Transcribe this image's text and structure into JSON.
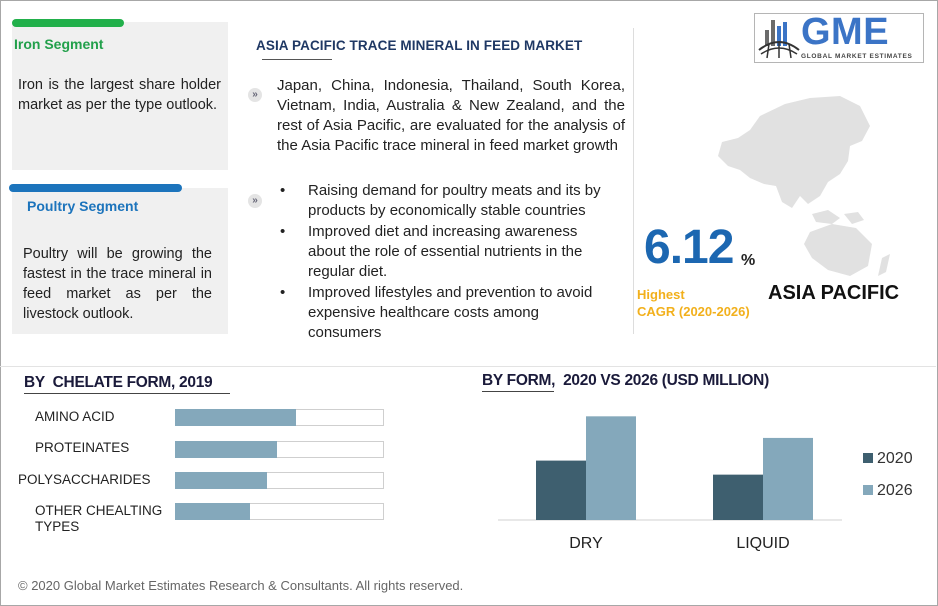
{
  "iron": {
    "title": "Iron Segment",
    "text": "Iron is the largest share holder market as per the type outlook.",
    "accent": "#22b04b"
  },
  "poultry": {
    "title": "Poultry Segment",
    "text": "Poultry will be growing the fastest in the trace mineral in feed market as per the livestock outlook.",
    "accent": "#1c74bc"
  },
  "main": {
    "title": "ASIA PACIFIC TRACE MINERAL IN FEED MARKET",
    "paragraph": "Japan, China, Indonesia, Thailand, South Korea, Vietnam, India, Australia & New Zealand, and the rest of Asia Pacific, are evaluated for the analysis of the Asia Pacific trace mineral in feed market growth",
    "bullets": [
      "Raising demand for poultry meats and its by products by economically stable countries",
      "Improved diet and increasing awareness about the role of essential nutrients in the regular diet.",
      "Improved lifestyles and prevention to avoid expensive healthcare costs among consumers"
    ],
    "bullet_glyph": "•",
    "icon_glyph": "»"
  },
  "logo": {
    "text": "GME",
    "subtitle": "GLOBAL MARKET ESTIMATES"
  },
  "stat": {
    "value": "6.12",
    "unit": "%",
    "label_line1": "Highest",
    "label_line2": "CAGR (2020-2026)",
    "region": "ASIA PACIFIC"
  },
  "footer": "© 2020 Global Market Estimates Research & Consultants. All rights reserved.",
  "colors": {
    "bar_2020": "#3e5f6f",
    "bar_2026": "#84a8bb",
    "hbar": "#84a8bb",
    "title_blue": "#1f3864",
    "stat_blue": "#1c67b1",
    "cagr_gold": "#f2b01c",
    "map": "#e1e1e1"
  },
  "chart_data": [
    {
      "type": "bar",
      "orientation": "horizontal",
      "title": "BY  CHELATE FORM, 2019",
      "categories": [
        "AMINO ACID",
        "PROTEINATES",
        "POLYSACCHARIDES",
        "OTHER CHEALTING TYPES"
      ],
      "values": [
        58,
        49,
        44,
        36
      ],
      "xlim": [
        0,
        100
      ],
      "grid": false
    },
    {
      "type": "bar",
      "title": "BY FORM,  2020 VS 2026 (USD MILLION)",
      "categories": [
        "DRY",
        "LIQUID"
      ],
      "series": [
        {
          "name": "2020",
          "values": [
            55,
            42
          ]
        },
        {
          "name": "2026",
          "values": [
            96,
            76
          ]
        }
      ],
      "ylim": [
        0,
        100
      ],
      "legend": "right",
      "grid": false
    }
  ]
}
